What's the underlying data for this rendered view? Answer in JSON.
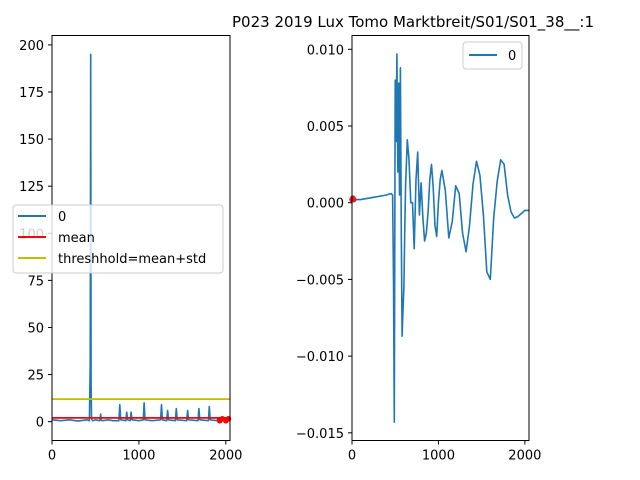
{
  "colors": {
    "series_blue": "#1f77b4",
    "mean_red": "#ff0000",
    "threshold_yellow": "#bfbf00",
    "marker_red": "#d62728"
  },
  "chart_data": [
    {
      "type": "line",
      "title": "",
      "xlabel": "",
      "ylabel": "",
      "xlim": [
        0,
        2048
      ],
      "ylim": [
        -10,
        205
      ],
      "xticks": [
        0,
        1000,
        2000
      ],
      "yticks": [
        0,
        25,
        50,
        75,
        100,
        125,
        150,
        175,
        200
      ],
      "grid": false,
      "legend_position": "center-left",
      "series": [
        {
          "name": "0",
          "color": "#1f77b4",
          "x": [
            0,
            100,
            200,
            300,
            400,
            430,
            440,
            445,
            450,
            455,
            460,
            470,
            500,
            550,
            560,
            565,
            580,
            650,
            700,
            770,
            780,
            790,
            850,
            860,
            870,
            900,
            910,
            920,
            1000,
            1050,
            1060,
            1070,
            1150,
            1250,
            1260,
            1270,
            1320,
            1330,
            1340,
            1420,
            1430,
            1440,
            1550,
            1560,
            1570,
            1680,
            1690,
            1700,
            1800,
            1810,
            1820,
            1900,
            1910,
            1920,
            1950,
            2000,
            2048
          ],
          "y": [
            1,
            0.5,
            1,
            0.3,
            1,
            0.5,
            30,
            195,
            20,
            2,
            1,
            0.5,
            1,
            0.5,
            4,
            1,
            0.5,
            1,
            0.5,
            0.5,
            9,
            1,
            0.5,
            5,
            1,
            0.5,
            5,
            1,
            0.5,
            1,
            10,
            1,
            0.5,
            1,
            9,
            1,
            0.5,
            6,
            1,
            0.5,
            7,
            1,
            0.5,
            6,
            1,
            0.5,
            7,
            1,
            0.5,
            8,
            1,
            0.5,
            2,
            0.5,
            1,
            0.5,
            0.5
          ]
        },
        {
          "name": "mean",
          "color": "#ff0000",
          "x": [
            0,
            2048
          ],
          "y": [
            2,
            2
          ]
        },
        {
          "name": "threshhold=mean+std",
          "color": "#bfbf00",
          "x": [
            0,
            2048
          ],
          "y": [
            12,
            12
          ]
        }
      ],
      "markers": [
        {
          "x": [
            1930,
            1960,
            2000,
            2030
          ],
          "y": [
            0.5,
            1.5,
            0.5,
            1.5
          ],
          "color": "#ff0000"
        }
      ]
    },
    {
      "type": "line",
      "title": "P023 2019 Lux Tomo Marktbreit/S01/S01_38__:1",
      "xlabel": "",
      "ylabel": "",
      "xlim": [
        0,
        2048
      ],
      "ylim": [
        -0.0155,
        0.0109
      ],
      "xticks": [
        0,
        1000,
        2000
      ],
      "yticks": [
        -0.015,
        -0.01,
        -0.005,
        0.0,
        0.005,
        0.01
      ],
      "ytick_labels": [
        "−0.015",
        "−0.010",
        "−0.005",
        "0.000",
        "0.005",
        "0.010"
      ],
      "grid": false,
      "legend_position": "top-right",
      "series": [
        {
          "name": "0",
          "color": "#1f77b4",
          "x": [
            0,
            100,
            200,
            300,
            400,
            450,
            470,
            480,
            490,
            500,
            510,
            520,
            530,
            540,
            550,
            560,
            570,
            580,
            590,
            600,
            610,
            620,
            640,
            660,
            680,
            700,
            720,
            740,
            760,
            780,
            800,
            820,
            840,
            860,
            880,
            900,
            920,
            940,
            960,
            980,
            1000,
            1020,
            1040,
            1080,
            1120,
            1160,
            1200,
            1240,
            1280,
            1320,
            1360,
            1400,
            1440,
            1480,
            1520,
            1560,
            1600,
            1640,
            1680,
            1720,
            1760,
            1800,
            1840,
            1880,
            1920,
            1960,
            2000,
            2048
          ],
          "y": [
            0.0002,
            0.0002,
            0.0003,
            0.0004,
            0.0005,
            0.0006,
            0.0005,
            -0.005,
            -0.0143,
            0.008,
            0.004,
            0.0097,
            0.002,
            0.0078,
            0.0005,
            0.0088,
            -0.002,
            -0.0087,
            -0.007,
            -0.0055,
            -0.002,
            0.0012,
            0.0041,
            0.0028,
            0.0,
            0.0,
            -0.003,
            0.0015,
            0.0033,
            -0.0008,
            0.0013,
            -0.001,
            -0.0025,
            -0.002,
            -0.0006,
            0.0015,
            0.0025,
            0.001,
            -0.0015,
            -0.0022,
            0.0,
            0.0015,
            0.0021,
            0.0008,
            -0.0023,
            -0.0012,
            0.0011,
            0.0006,
            -0.002,
            -0.0032,
            -0.0015,
            0.0012,
            0.0027,
            0.0018,
            -0.0008,
            -0.0045,
            -0.005,
            -0.001,
            0.0014,
            0.0028,
            0.0025,
            0.0005,
            -0.0006,
            -0.001,
            -0.0009,
            -0.0007,
            -0.0005,
            -0.0005
          ]
        }
      ],
      "markers": [
        {
          "x": [
            0,
            10,
            20
          ],
          "y": [
            0.0002,
            0.0003,
            0.0002
          ],
          "color": "#d62728"
        }
      ]
    }
  ]
}
